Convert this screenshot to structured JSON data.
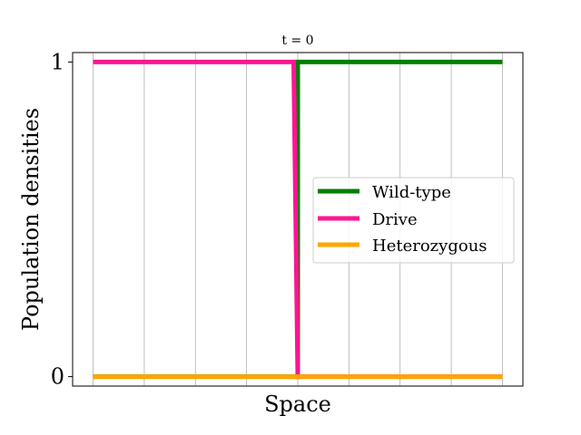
{
  "chart_data": {
    "type": "line",
    "title": "t = 0",
    "xlabel": "Space",
    "ylabel": "Population densities",
    "xlim": [
      -0.05,
      1.05
    ],
    "ylim": [
      -0.03,
      1.03
    ],
    "yticks": [
      0,
      1
    ],
    "yticklabels": [
      "0",
      "1"
    ],
    "xgrid": [
      0,
      0.125,
      0.25,
      0.375,
      0.5,
      0.625,
      0.75,
      0.875,
      1
    ],
    "grid": "vertical only",
    "legend_position": "center-right",
    "series": [
      {
        "name": "Wild-type",
        "color": "#008000",
        "x": [
          0,
          0.5,
          0.5,
          1
        ],
        "y": [
          0,
          0,
          1,
          1
        ]
      },
      {
        "name": "Drive",
        "color": "#ff1493",
        "x": [
          0,
          0.49,
          0.5,
          1
        ],
        "y": [
          1,
          1,
          0,
          0
        ]
      },
      {
        "name": "Heterozygous",
        "color": "#ffa500",
        "x": [
          0,
          1
        ],
        "y": [
          0,
          0
        ]
      }
    ]
  }
}
